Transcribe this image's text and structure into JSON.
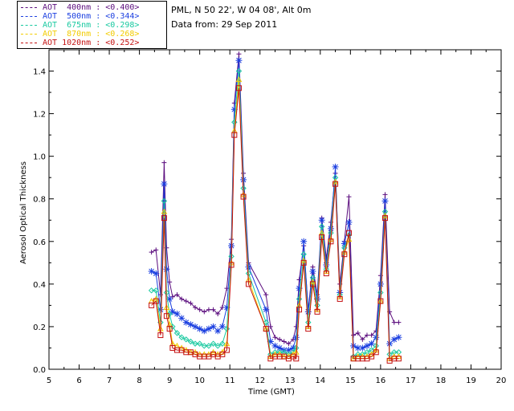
{
  "header": {
    "station": "PML, N 50 22', W 04 08', Alt 0m",
    "date_line": "Data from: 29 Sep 2011"
  },
  "legend": [
    {
      "label": "AOT  400nm : <0.400>",
      "color": "#5b0d7e"
    },
    {
      "label": "AOT  500nm : <0.344>",
      "color": "#1b3fe0"
    },
    {
      "label": "AOT  675nm : <0.298>",
      "color": "#18c9a0"
    },
    {
      "label": "AOT  870nm : <0.268>",
      "color": "#f2cc00"
    },
    {
      "label": "AOT 1020nm : <0.252>",
      "color": "#c41212"
    }
  ],
  "chart_data": {
    "type": "line",
    "title": "",
    "xlabel": "Time (GMT)",
    "ylabel": "Aerosol Optical Thickness",
    "xlim": [
      5,
      20
    ],
    "ylim": [
      0.0,
      1.5
    ],
    "xticks": [
      "5",
      "6",
      "7",
      "8",
      "9",
      "10",
      "11",
      "12",
      "13",
      "14",
      "15",
      "16",
      "17",
      "18",
      "19",
      "20"
    ],
    "yticks": [
      "0.0",
      "0.2",
      "0.4",
      "0.6",
      "0.8",
      "1.0",
      "1.2",
      "1.4"
    ],
    "x": [
      8.4,
      8.55,
      8.7,
      8.82,
      8.9,
      9.0,
      9.1,
      9.25,
      9.4,
      9.55,
      9.7,
      9.85,
      10.0,
      10.15,
      10.3,
      10.45,
      10.6,
      10.75,
      10.9,
      11.05,
      11.15,
      11.3,
      11.45,
      11.62,
      12.2,
      12.35,
      12.5,
      12.65,
      12.8,
      12.95,
      13.1,
      13.2,
      13.3,
      13.45,
      13.6,
      13.75,
      13.9,
      14.05,
      14.2,
      14.35,
      14.5,
      14.65,
      14.8,
      14.95,
      15.1,
      15.25,
      15.4,
      15.55,
      15.7,
      15.85,
      16.0,
      16.15,
      16.3,
      16.45,
      16.6
    ],
    "series": [
      {
        "name": "AOT 400nm",
        "color": "#5b0d7e",
        "marker": "plus",
        "values": [
          0.55,
          0.56,
          0.35,
          0.97,
          0.57,
          0.41,
          0.34,
          0.35,
          0.33,
          0.32,
          0.31,
          0.29,
          0.28,
          0.27,
          0.28,
          0.28,
          0.26,
          0.29,
          0.38,
          0.61,
          1.25,
          1.48,
          0.92,
          0.5,
          0.35,
          0.2,
          0.15,
          0.14,
          0.13,
          0.12,
          0.14,
          0.2,
          0.42,
          0.58,
          0.28,
          0.48,
          0.35,
          0.71,
          0.52,
          0.69,
          0.92,
          0.4,
          0.6,
          0.81,
          0.16,
          0.17,
          0.14,
          0.16,
          0.16,
          0.18,
          0.44,
          0.82,
          0.27,
          0.22,
          0.22
        ]
      },
      {
        "name": "AOT 500nm",
        "color": "#1b3fe0",
        "marker": "asterisk",
        "values": [
          0.46,
          0.45,
          0.28,
          0.87,
          0.47,
          0.33,
          0.27,
          0.26,
          0.24,
          0.22,
          0.21,
          0.2,
          0.19,
          0.18,
          0.19,
          0.2,
          0.18,
          0.2,
          0.29,
          0.58,
          1.22,
          1.45,
          0.89,
          0.48,
          0.28,
          0.13,
          0.11,
          0.1,
          0.09,
          0.09,
          0.1,
          0.15,
          0.38,
          0.6,
          0.27,
          0.46,
          0.33,
          0.7,
          0.49,
          0.66,
          0.95,
          0.36,
          0.59,
          0.69,
          0.11,
          0.1,
          0.1,
          0.11,
          0.12,
          0.15,
          0.4,
          0.79,
          0.12,
          0.14,
          0.15
        ]
      },
      {
        "name": "AOT 675nm",
        "color": "#18c9a0",
        "marker": "diamond",
        "values": [
          0.37,
          0.37,
          0.22,
          0.79,
          0.36,
          0.26,
          0.2,
          0.17,
          0.15,
          0.14,
          0.13,
          0.12,
          0.12,
          0.11,
          0.11,
          0.12,
          0.11,
          0.12,
          0.19,
          0.53,
          1.16,
          1.4,
          0.85,
          0.45,
          0.22,
          0.07,
          0.08,
          0.08,
          0.08,
          0.07,
          0.08,
          0.1,
          0.33,
          0.54,
          0.22,
          0.43,
          0.3,
          0.67,
          0.47,
          0.64,
          0.9,
          0.35,
          0.57,
          0.63,
          0.06,
          0.07,
          0.07,
          0.08,
          0.09,
          0.11,
          0.36,
          0.74,
          0.07,
          0.08,
          0.08
        ]
      },
      {
        "name": "AOT 870nm",
        "color": "#f2cc00",
        "marker": "triangle",
        "values": [
          0.32,
          0.33,
          0.19,
          0.74,
          0.29,
          0.21,
          0.12,
          0.11,
          0.1,
          0.09,
          0.08,
          0.08,
          0.07,
          0.07,
          0.07,
          0.08,
          0.07,
          0.08,
          0.12,
          0.5,
          1.12,
          1.36,
          0.82,
          0.42,
          0.19,
          0.06,
          0.07,
          0.07,
          0.06,
          0.06,
          0.07,
          0.08,
          0.3,
          0.51,
          0.2,
          0.41,
          0.28,
          0.64,
          0.46,
          0.61,
          0.88,
          0.34,
          0.55,
          0.61,
          0.05,
          0.06,
          0.06,
          0.06,
          0.07,
          0.09,
          0.32,
          0.72,
          0.05,
          0.06,
          0.06
        ]
      },
      {
        "name": "AOT 1020nm",
        "color": "#c41212",
        "marker": "square",
        "values": [
          0.3,
          0.32,
          0.16,
          0.71,
          0.25,
          0.19,
          0.1,
          0.09,
          0.09,
          0.08,
          0.08,
          0.07,
          0.06,
          0.06,
          0.06,
          0.07,
          0.06,
          0.07,
          0.09,
          0.49,
          1.1,
          1.32,
          0.81,
          0.4,
          0.19,
          0.05,
          0.06,
          0.06,
          0.06,
          0.05,
          0.06,
          0.05,
          0.28,
          0.5,
          0.19,
          0.4,
          0.27,
          0.62,
          0.45,
          0.6,
          0.87,
          0.33,
          0.54,
          0.64,
          0.05,
          0.05,
          0.05,
          0.05,
          0.06,
          0.08,
          0.32,
          0.71,
          0.04,
          0.05,
          0.05
        ]
      }
    ]
  }
}
